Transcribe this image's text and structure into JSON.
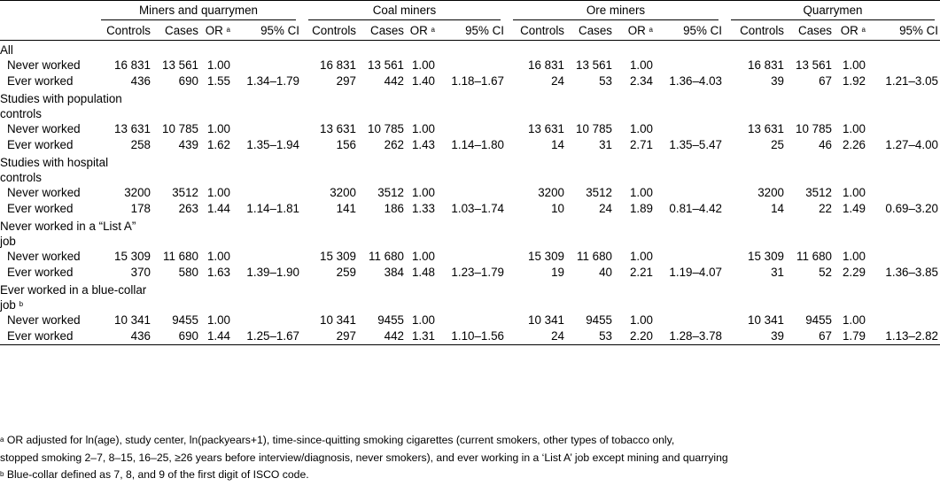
{
  "groups": [
    "Miners and quarrymen",
    "Coal miners",
    "Ore miners",
    "Quarrymen"
  ],
  "columns": [
    "Controls",
    "Cases",
    "OR",
    "95% CI"
  ],
  "or_marker": "a",
  "sections": [
    {
      "title": "All",
      "rows": [
        {
          "label": "Never worked",
          "cells": [
            [
              "16 831",
              "13 561",
              "1.00",
              ""
            ],
            [
              "16 831",
              "13 561",
              "1.00",
              ""
            ],
            [
              "16 831",
              "13 561",
              "1.00",
              ""
            ],
            [
              "16 831",
              "13 561",
              "1.00",
              ""
            ]
          ]
        },
        {
          "label": "Ever worked",
          "cells": [
            [
              "436",
              "690",
              "1.55",
              "1.34–1.79"
            ],
            [
              "297",
              "442",
              "1.40",
              "1.18–1.67"
            ],
            [
              "24",
              "53",
              "2.34",
              "1.36–4.03"
            ],
            [
              "39",
              "67",
              "1.92",
              "1.21–3.05"
            ]
          ]
        }
      ]
    },
    {
      "title": "Studies with population controls",
      "rows": [
        {
          "label": "Never worked",
          "cells": [
            [
              "13 631",
              "10 785",
              "1.00",
              ""
            ],
            [
              "13 631",
              "10 785",
              "1.00",
              ""
            ],
            [
              "13 631",
              "10 785",
              "1.00",
              ""
            ],
            [
              "13 631",
              "10 785",
              "1.00",
              ""
            ]
          ]
        },
        {
          "label": "Ever worked",
          "cells": [
            [
              "258",
              "439",
              "1.62",
              "1.35–1.94"
            ],
            [
              "156",
              "262",
              "1.43",
              "1.14–1.80"
            ],
            [
              "14",
              "31",
              "2.71",
              "1.35–5.47"
            ],
            [
              "25",
              "46",
              "2.26",
              "1.27–4.00"
            ]
          ]
        }
      ]
    },
    {
      "title": "Studies with hospital controls",
      "rows": [
        {
          "label": "Never worked",
          "cells": [
            [
              "3200",
              "3512",
              "1.00",
              ""
            ],
            [
              "3200",
              "3512",
              "1.00",
              ""
            ],
            [
              "3200",
              "3512",
              "1.00",
              ""
            ],
            [
              "3200",
              "3512",
              "1.00",
              ""
            ]
          ]
        },
        {
          "label": "Ever worked",
          "cells": [
            [
              "178",
              "263",
              "1.44",
              "1.14–1.81"
            ],
            [
              "141",
              "186",
              "1.33",
              "1.03–1.74"
            ],
            [
              "10",
              "24",
              "1.89",
              "0.81–4.42"
            ],
            [
              "14",
              "22",
              "1.49",
              "0.69–3.20"
            ]
          ]
        }
      ]
    },
    {
      "title": "Never worked in a “List A” job",
      "rows": [
        {
          "label": "Never worked",
          "cells": [
            [
              "15 309",
              "11 680",
              "1.00",
              ""
            ],
            [
              "15 309",
              "11 680",
              "1.00",
              ""
            ],
            [
              "15 309",
              "11 680",
              "1.00",
              ""
            ],
            [
              "15 309",
              "11 680",
              "1.00",
              ""
            ]
          ]
        },
        {
          "label": "Ever worked",
          "cells": [
            [
              "370",
              "580",
              "1.63",
              "1.39–1.90"
            ],
            [
              "259",
              "384",
              "1.48",
              "1.23–1.79"
            ],
            [
              "19",
              "40",
              "2.21",
              "1.19–4.07"
            ],
            [
              "31",
              "52",
              "2.29",
              "1.36–3.85"
            ]
          ]
        }
      ]
    },
    {
      "title": "Ever worked in a blue-collar job",
      "title_marker": "b",
      "rows": [
        {
          "label": "Never worked",
          "cells": [
            [
              "10 341",
              "9455",
              "1.00",
              ""
            ],
            [
              "10 341",
              "9455",
              "1.00",
              ""
            ],
            [
              "10 341",
              "9455",
              "1.00",
              ""
            ],
            [
              "10 341",
              "9455",
              "1.00",
              ""
            ]
          ]
        },
        {
          "label": "Ever worked",
          "cells": [
            [
              "436",
              "690",
              "1.44",
              "1.25–1.67"
            ],
            [
              "297",
              "442",
              "1.31",
              "1.10–1.56"
            ],
            [
              "24",
              "53",
              "2.20",
              "1.28–3.78"
            ],
            [
              "39",
              "67",
              "1.79",
              "1.13–2.82"
            ]
          ]
        }
      ]
    }
  ],
  "footnotes": [
    {
      "marker": "a",
      "text": "OR adjusted for ln(age), study center, ln(packyears+1), time-since-quitting smoking cigarettes (current smokers, other types of tobacco only,"
    },
    {
      "marker": "",
      "text": "stopped smoking 2–7, 8–15, 16–25, ≥26 years before interview/diagnosis, never smokers), and ever working in a ‘List A’ job except mining and quarrying"
    },
    {
      "marker": "b",
      "text": "Blue-collar defined as 7, 8, and 9 of the first digit of ISCO code."
    }
  ]
}
